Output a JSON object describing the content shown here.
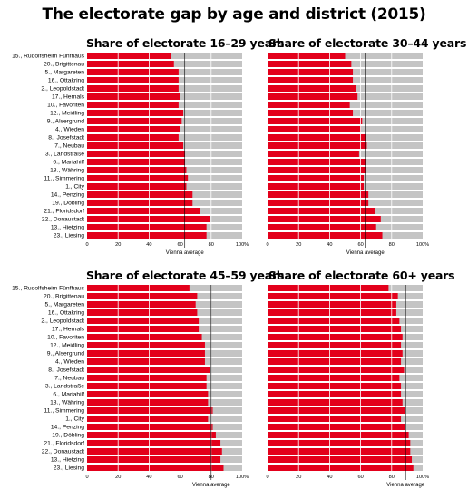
{
  "title": "The electorate gap by age and district (2015)",
  "avg_label": "Vienna average",
  "colors": {
    "bar": "#e3001b",
    "background": "#c4c4c4",
    "gridline": "#ffffff",
    "avg_line": "#000000"
  },
  "chart_data": [
    {
      "type": "bar",
      "orientation": "horizontal",
      "title": "Share of electorate 16–29 years",
      "categories": [
        "15., Rudolfsheim Fünfhaus",
        "20., Brigittenau",
        "5., Margareten",
        "16., Ottakring",
        "2., Leopoldstadt",
        "17., Hernals",
        "10., Favoriten",
        "12., Meidling",
        "9., Alsergrund",
        "4., Wieden",
        "8., Josefstadt",
        "7., Neubau",
        "3., Landstraße",
        "6., Mariahilf",
        "18., Währing",
        "11., Simmering",
        "1., City",
        "14., Penzing",
        "19., Döbling",
        "21., Floridsdorf",
        "22., Donaustadt",
        "13., Hietzing",
        "23., Liesing"
      ],
      "values": [
        54,
        56,
        59,
        59,
        59,
        60,
        59,
        62,
        61,
        60,
        59,
        62,
        63,
        63,
        64,
        65,
        64,
        68,
        68,
        73,
        79,
        77,
        77
      ],
      "vienna_average": 63,
      "xlim": [
        0,
        100
      ],
      "xticks": [
        "0",
        "20",
        "40",
        "60",
        "80",
        "100%"
      ]
    },
    {
      "type": "bar",
      "orientation": "horizontal",
      "title": "Share of electorate 30–44 years",
      "categories": [
        "15., Rudolfsheim Fünfhaus",
        "20., Brigittenau",
        "5., Margareten",
        "16., Ottakring",
        "2., Leopoldstadt",
        "17., Hernals",
        "10., Favoriten",
        "12., Meidling",
        "9., Alsergrund",
        "4., Wieden",
        "8., Josefstadt",
        "7., Neubau",
        "3., Landstraße",
        "6., Mariahilf",
        "18., Währing",
        "11., Simmering",
        "1., City",
        "14., Penzing",
        "19., Döbling",
        "21., Floridsdorf",
        "22., Donaustadt",
        "13., Hietzing",
        "23., Liesing"
      ],
      "values": [
        50,
        54,
        55,
        55,
        57,
        58,
        53,
        55,
        61,
        60,
        63,
        64,
        59,
        63,
        63,
        62,
        62,
        65,
        65,
        69,
        73,
        70,
        74
      ],
      "vienna_average": 63,
      "xlim": [
        0,
        100
      ],
      "xticks": [
        "0",
        "20",
        "40",
        "60",
        "80",
        "100%"
      ]
    },
    {
      "type": "bar",
      "orientation": "horizontal",
      "title": "Share of electorate 45–59 years",
      "categories": [
        "15., Rudolfsheim Fünfhaus",
        "20., Brigittenau",
        "5., Margareten",
        "16., Ottakring",
        "2., Leopoldstadt",
        "17., Hernals",
        "10., Favoriten",
        "12., Meidling",
        "9., Alsergrund",
        "4., Wieden",
        "8., Josefstadt",
        "7., Neubau",
        "3., Landstraße",
        "6., Mariahilf",
        "18., Währing",
        "11., Simmering",
        "1., City",
        "14., Penzing",
        "19., Döbling",
        "21., Floridsdorf",
        "22., Donaustadt",
        "13., Hietzing",
        "23., Liesing"
      ],
      "values": [
        66,
        71,
        70,
        71,
        72,
        72,
        74,
        76,
        76,
        76,
        79,
        77,
        77,
        78,
        78,
        81,
        78,
        81,
        83,
        86,
        87,
        86,
        88
      ],
      "vienna_average": 80,
      "xlim": [
        0,
        100
      ],
      "xticks": [
        "0",
        "20",
        "40",
        "60",
        "80",
        "100%"
      ]
    },
    {
      "type": "bar",
      "orientation": "horizontal",
      "title": "Share of electorate 60+ years",
      "categories": [
        "15., Rudolfsheim Fünfhaus",
        "20., Brigittenau",
        "5., Margareten",
        "16., Ottakring",
        "2., Leopoldstadt",
        "17., Hernals",
        "10., Favoriten",
        "12., Meidling",
        "9., Alsergrund",
        "4., Wieden",
        "8., Josefstadt",
        "7., Neubau",
        "3., Landstraße",
        "6., Mariahilf",
        "18., Währing",
        "11., Simmering",
        "1., City",
        "14., Penzing",
        "19., Döbling",
        "21., Floridsdorf",
        "22., Donaustadt",
        "13., Hietzing",
        "23., Liesing"
      ],
      "values": [
        78,
        84,
        83,
        83,
        85,
        86,
        87,
        86,
        87,
        86,
        88,
        85,
        86,
        86,
        87,
        89,
        86,
        89,
        91,
        92,
        92,
        93,
        94
      ],
      "vienna_average": 89,
      "xlim": [
        0,
        100
      ],
      "xticks": [
        "0",
        "20",
        "40",
        "60",
        "80",
        "100%"
      ]
    }
  ]
}
